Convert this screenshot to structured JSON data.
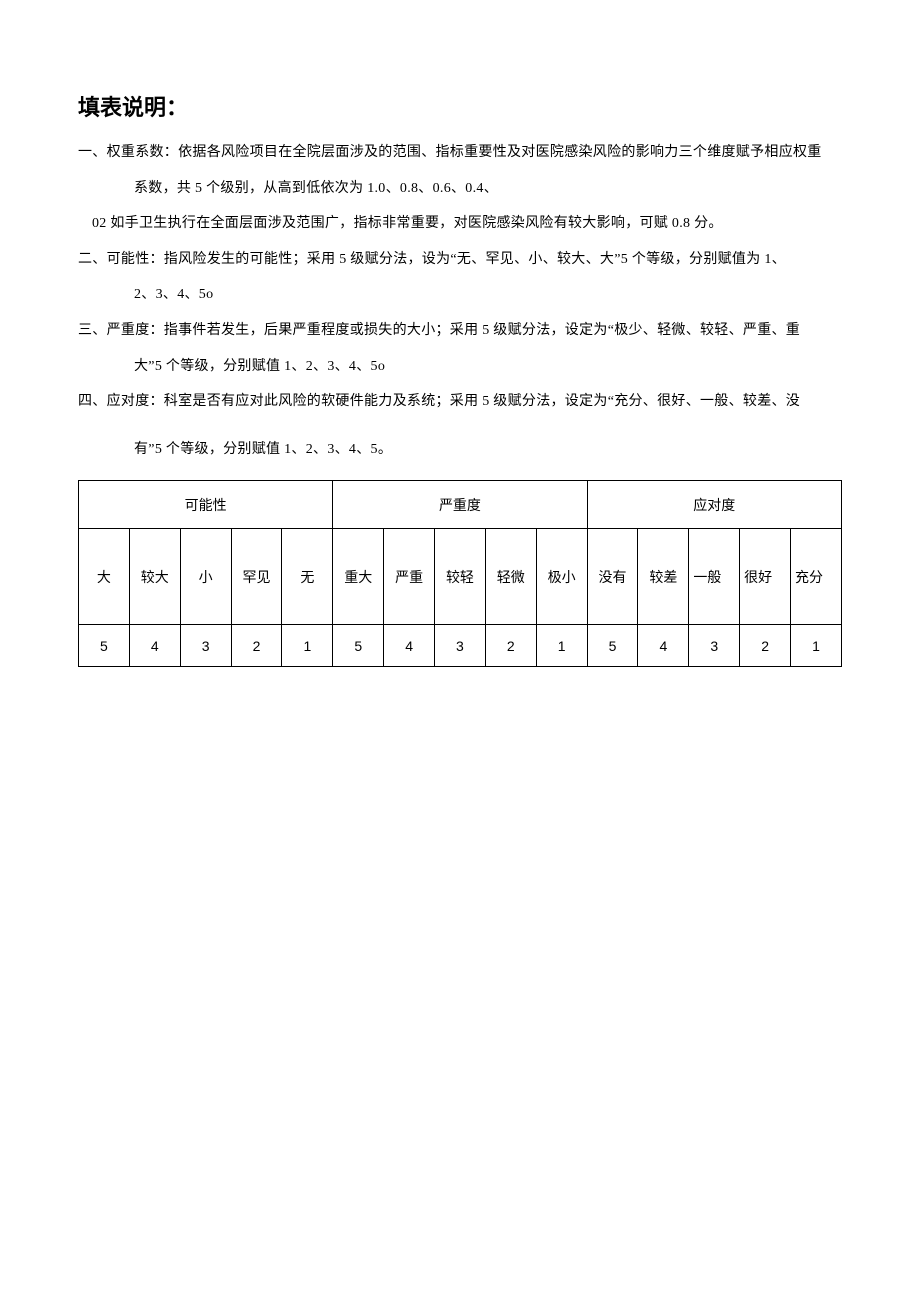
{
  "title": "填表说明：",
  "items": {
    "one_a": "一、权重系数：依据各风险项目在全院层面涉及的范围、指标重要性及对医院感染风险的影响力三个维度赋予相应权重",
    "one_a_cont": "系数，共 5 个级别，从高到低依次为 1.0、0.8、0.6、0.4、",
    "one_b": "02 如手卫生执行在全面层面涉及范围广，指标非常重要，对医院感染风险有较大影响，可赋 0.8 分。",
    "two_a": "二、可能性：指风险发生的可能性；采用 5 级赋分法，设为“无、罕见、小、较大、大”5 个等级，分别赋值为 1、",
    "two_a_cont": "2、3、4、5o",
    "three_a": "三、严重度：指事件若发生，后果严重程度或损失的大小；采用 5 级赋分法，设定为“极少、轻微、较轻、严重、重",
    "three_a_cont": "大”5 个等级，分别赋值 1、2、3、4、5o",
    "four_a": "四、应对度：科室是否有应对此风险的软硬件能力及系统；采用 5 级赋分法，设定为“充分、很好、一般、较差、没",
    "four_a_cont": "有”5 个等级，分别赋值 1、2、3、4、5。"
  },
  "table": {
    "groups": [
      "可能性",
      "严重度",
      "应对度"
    ],
    "labels": {
      "g1": [
        "大",
        "较大",
        "小",
        "罕见",
        "无"
      ],
      "g2": [
        "重大",
        "严重",
        "较轻",
        "轻微",
        "极小"
      ],
      "g3": [
        "没有",
        "较差",
        "一般",
        "很好",
        "充分"
      ]
    },
    "values": {
      "g1": [
        "5",
        "4",
        "3",
        "2",
        "1"
      ],
      "g2": [
        "5",
        "4",
        "3",
        "2",
        "1"
      ],
      "g3": [
        "5",
        "4",
        "3",
        "2",
        "1"
      ]
    },
    "border_color": "#000000",
    "background_color": "#ffffff",
    "font_size": 14
  }
}
